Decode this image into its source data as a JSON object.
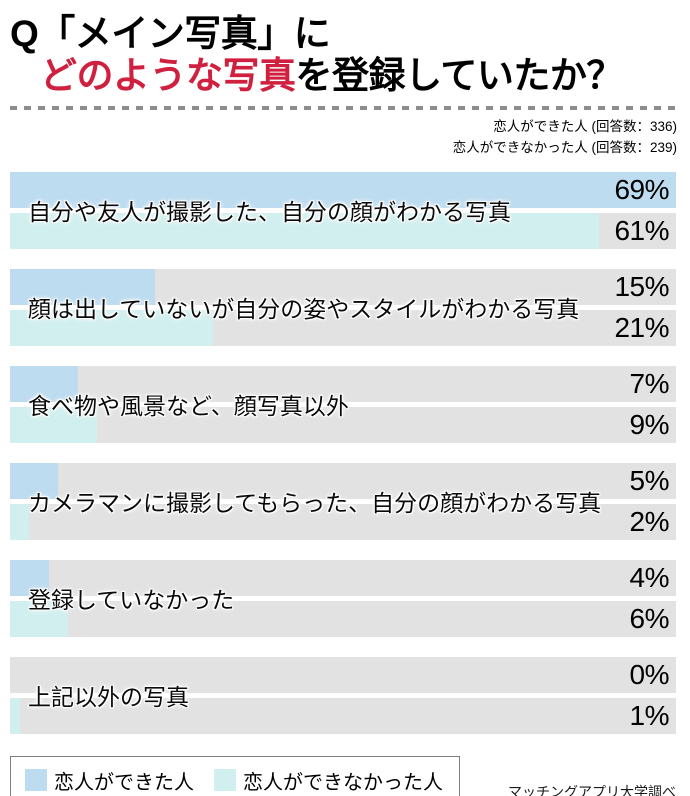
{
  "title": {
    "line1": "Q「メイン写真」に",
    "line2_highlight": "どのような写真",
    "line2_rest": "を登録していたか？",
    "highlight_color": "#d0203f"
  },
  "note": {
    "line1": "恋人ができた人 (回答数：336)",
    "line2": "恋人ができなかった人 (回答数：239)"
  },
  "chart_data": {
    "type": "bar",
    "orientation": "horizontal",
    "title": "Q「メイン写真」にどのような写真を登録していたか？",
    "unit": "%",
    "scale_max": 69,
    "track_color": "#e2e2e2",
    "categories": [
      "自分や友人が撮影した、自分の顔がわかる写真",
      "顔は出していないが自分の姿やスタイルがわかる写真",
      "食べ物や風景など、顔写真以外",
      "カメラマンに撮影してもらった、自分の顔がわかる写真",
      "登録していなかった",
      "上記以外の写真"
    ],
    "series": [
      {
        "name": "恋人ができた人",
        "respondents": 336,
        "color": "#bddcf0",
        "values": [
          69,
          15,
          7,
          5,
          4,
          0
        ]
      },
      {
        "name": "恋人ができなかった人",
        "respondents": 239,
        "color": "#d2efef",
        "values": [
          61,
          21,
          9,
          2,
          6,
          1
        ]
      }
    ],
    "value_labels": [
      [
        "69%",
        "61%"
      ],
      [
        "15%",
        "21%"
      ],
      [
        "7%",
        "9%"
      ],
      [
        "5%",
        "2%"
      ],
      [
        "4%",
        "6%"
      ],
      [
        "0%",
        "1%"
      ]
    ]
  },
  "legend": {
    "items": [
      {
        "label": "恋人ができた人",
        "color": "#bddcf0"
      },
      {
        "label": "恋人ができなかった人",
        "color": "#d2efef"
      }
    ]
  },
  "credit": "マッチングアプリ大学調べ"
}
